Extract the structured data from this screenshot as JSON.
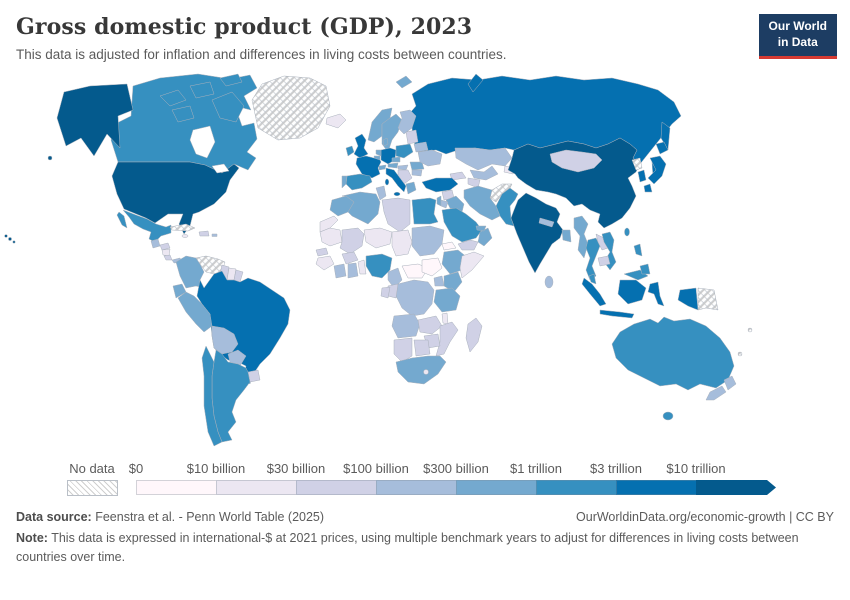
{
  "header": {
    "title": "Gross domestic product (GDP), 2023",
    "subtitle": "This data is adjusted for inflation and differences in living costs between countries.",
    "logo": {
      "line1": "Our World",
      "line2": "in Data"
    }
  },
  "legend": {
    "no_data_label": "No data"
  },
  "footer": {
    "source_label": "Data source:",
    "source_text": " Feenstra et al. - Penn World Table (2025)",
    "link_text": "OurWorldinData.org/economic-growth | CC BY",
    "note_label": "Note:",
    "note_text": " This data is expressed in international-$ at 2021 prices, using multiple benchmark years to adjust for differences in living costs between countries over time."
  },
  "chart_data": {
    "type": "heatmap",
    "subtype": "choropleth-world-map",
    "title": "Gross domestic product (GDP), 2023",
    "year": 2023,
    "unit": "international-$ at 2021 prices",
    "legend_position": "bottom",
    "legend_bins": [
      {
        "label": "$0",
        "color": "#fff7fb"
      },
      {
        "label": "$10 billion",
        "color": "#ece7f2"
      },
      {
        "label": "$30 billion",
        "color": "#d0d1e6"
      },
      {
        "label": "$100 billion",
        "color": "#a6bddb"
      },
      {
        "label": "$300 billion",
        "color": "#74a9cf"
      },
      {
        "label": "$1 trillion",
        "color": "#3690c0"
      },
      {
        "label": "$3 trillion",
        "color": "#0570b0"
      },
      {
        "label": "$10 trillion",
        "color": "#045a8d"
      }
    ],
    "no_data_key": "no-data",
    "country_bins": {
      "united-states": 7,
      "canada": 5,
      "mexico": 5,
      "greenland": "no-data",
      "cuba": "no-data",
      "hispaniola": 2,
      "jamaica": 1,
      "puerto-rico": 3,
      "guatemala": 3,
      "honduras": 2,
      "nicaragua": 1,
      "costa-rica": 2,
      "panama": 3,
      "colombia": 4,
      "venezuela": "no-data",
      "guyana": 2,
      "suriname": 1,
      "french-guiana": 2,
      "ecuador": 4,
      "peru": 4,
      "brazil": 6,
      "bolivia": 3,
      "paraguay": 3,
      "uruguay": 2,
      "argentina": 5,
      "chile": 5,
      "iceland": 1,
      "norway": 4,
      "sweden": 4,
      "finland": 3,
      "denmark": 4,
      "united-kingdom": 6,
      "ireland": 5,
      "netherlands": 4,
      "belgium": 4,
      "germany": 6,
      "france": 6,
      "spain": 5,
      "portugal": 4,
      "switzerland": 4,
      "austria": 4,
      "czechia": 4,
      "poland": 5,
      "hungary": 3,
      "balkans": 2,
      "greece": 4,
      "italy": 6,
      "romania": 4,
      "bulgaria": 3,
      "baltics": 2,
      "belarus": 3,
      "ukraine": 3,
      "russia": 6,
      "kazakhstan": 3,
      "uzbekistan": 3,
      "turkmenistan": 2,
      "kyrgyz-tajik": 1,
      "caucasus": 2,
      "mongolia": 2,
      "turkey": 6,
      "syria": 2,
      "iraq": 4,
      "iran": 4,
      "israel": 4,
      "jordan": 3,
      "saudi-arabia": 5,
      "yemen": 2,
      "oman": 4,
      "uae": 4,
      "afghanistan": "no-data",
      "pakistan": 5,
      "china": 7,
      "india": 7,
      "nepal": 3,
      "bangladesh": 4,
      "sri-lanka": 3,
      "myanmar": 4,
      "thailand": 5,
      "laos": 2,
      "vietnam": 5,
      "cambodia": 2,
      "malaysia": 5,
      "indonesia": 6,
      "papua-new-guinea": "no-data",
      "philippines": 5,
      "taiwan": 5,
      "japan": 6,
      "south-korea": 6,
      "north-korea": "no-data",
      "egypt": 5,
      "libya": 2,
      "tunisia": 3,
      "algeria": 4,
      "morocco": 4,
      "western-sahara": 1,
      "mauritania": 1,
      "mali": 2,
      "niger": 1,
      "chad": 1,
      "sudan": 3,
      "eritrea": 0,
      "senegal": 2,
      "guinea": 1,
      "ivory-coast": 3,
      "ghana": 3,
      "burkina-faso": 2,
      "benin-togo": 1,
      "nigeria": 5,
      "cameroon": 3,
      "central-african-republic": 0,
      "south-sudan": 0,
      "ethiopia": 4,
      "somalia": 1,
      "kenya": 4,
      "uganda": 3,
      "dr-congo": 3,
      "congo": 2,
      "gabon": 2,
      "tanzania": 4,
      "angola": 3,
      "zambia": 2,
      "malawi": 1,
      "mozambique": 2,
      "zimbabwe": 2,
      "madagascar": 2,
      "namibia": 2,
      "botswana": 2,
      "south-africa": 4,
      "lesotho": 1,
      "australia": 5,
      "new-zealand": 3,
      "fiji": "no-data",
      "new-caledonia": "no-data"
    }
  }
}
